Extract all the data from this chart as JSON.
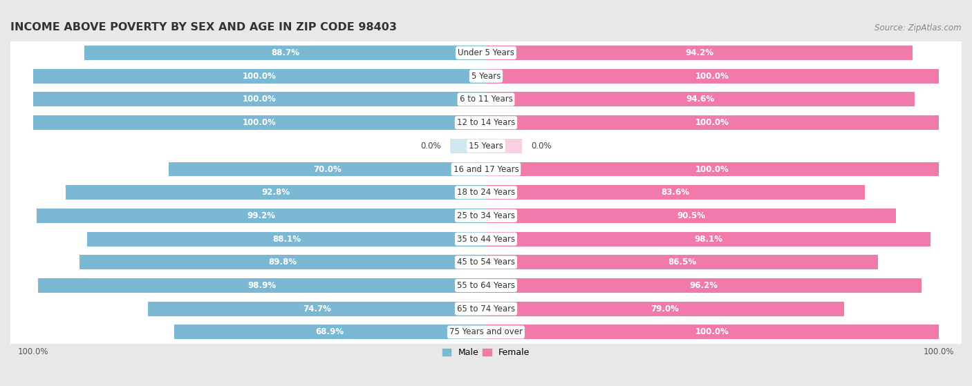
{
  "title": "INCOME ABOVE POVERTY BY SEX AND AGE IN ZIP CODE 98403",
  "source": "Source: ZipAtlas.com",
  "categories": [
    "Under 5 Years",
    "5 Years",
    "6 to 11 Years",
    "12 to 14 Years",
    "15 Years",
    "16 and 17 Years",
    "18 to 24 Years",
    "25 to 34 Years",
    "35 to 44 Years",
    "45 to 54 Years",
    "55 to 64 Years",
    "65 to 74 Years",
    "75 Years and over"
  ],
  "male_values": [
    88.7,
    100.0,
    100.0,
    100.0,
    0.0,
    70.0,
    92.8,
    99.2,
    88.1,
    89.8,
    98.9,
    74.7,
    68.9
  ],
  "female_values": [
    94.2,
    100.0,
    94.6,
    100.0,
    0.0,
    100.0,
    83.6,
    90.5,
    98.1,
    86.5,
    96.2,
    79.0,
    100.0
  ],
  "male_color": "#7bb8d4",
  "female_color": "#f07aaa",
  "male_label": "Male",
  "female_label": "Female",
  "background_color": "#e8e8e8",
  "bar_row_color": "#ffffff",
  "bar_height": 0.62,
  "title_fontsize": 11.5,
  "label_fontsize": 8.5,
  "tick_fontsize": 8.5,
  "source_fontsize": 8.5,
  "zero_bar_width": 8.0
}
